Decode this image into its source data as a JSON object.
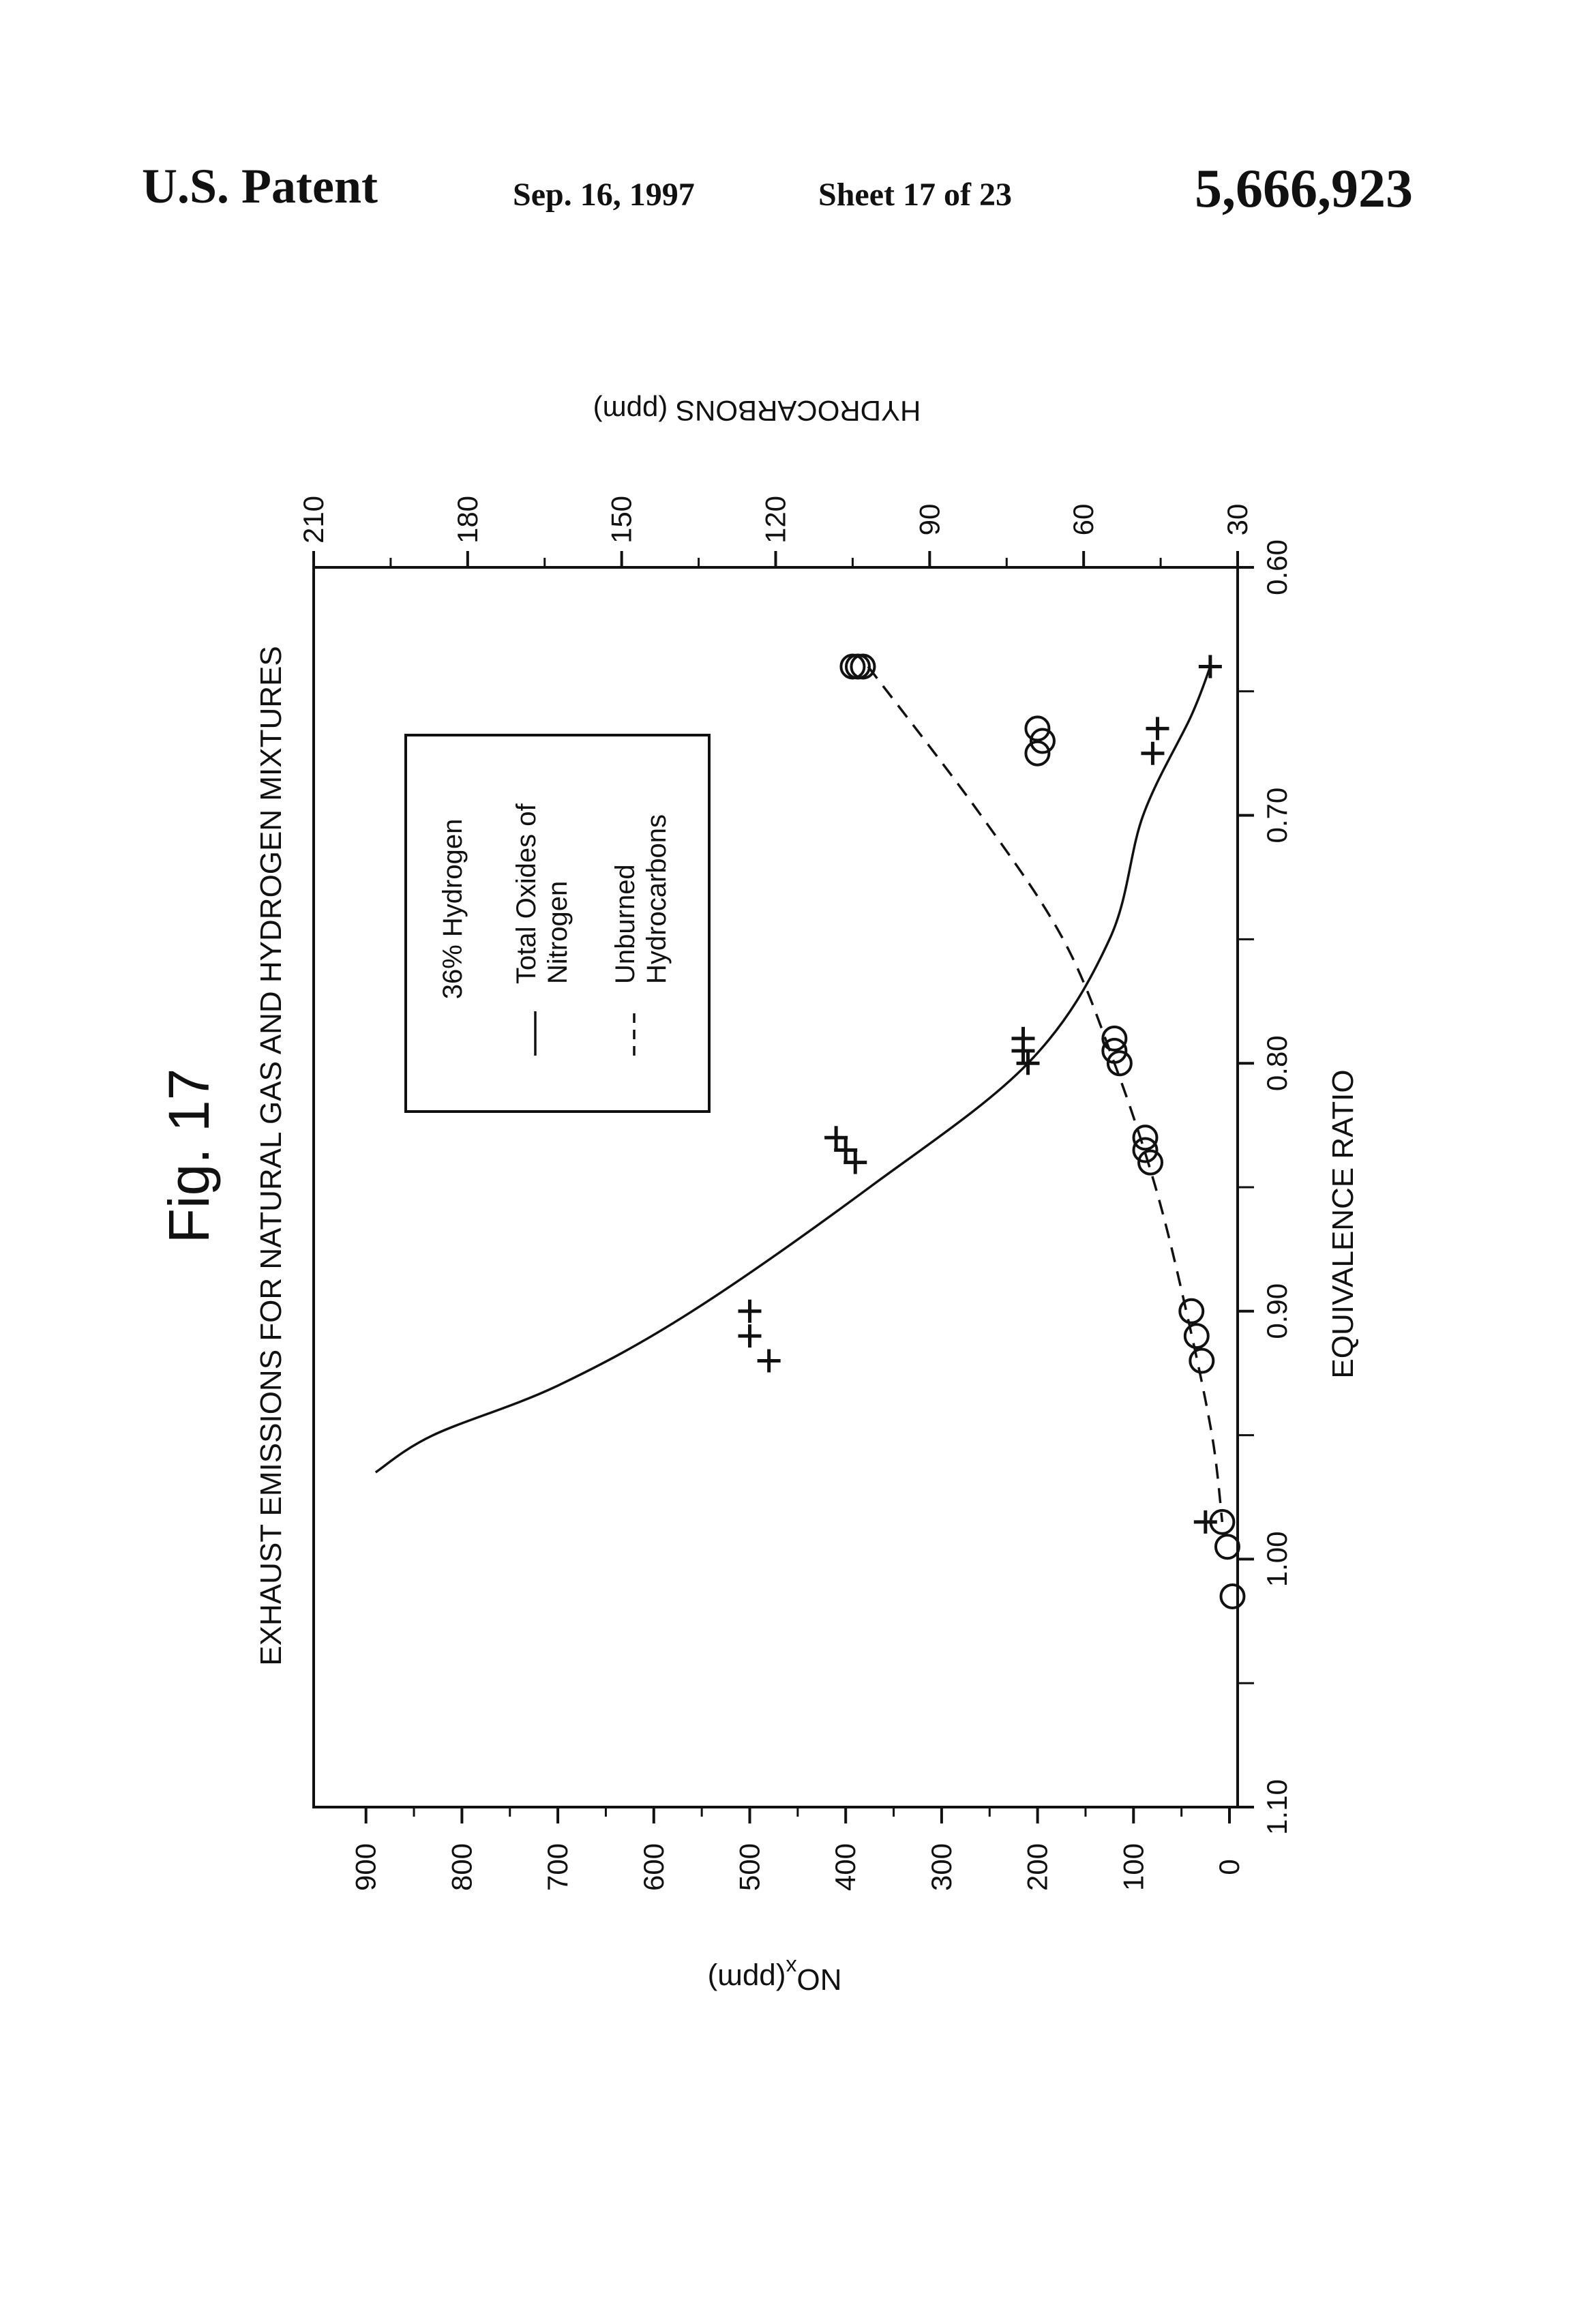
{
  "header": {
    "patent_label": "U.S. Patent",
    "date": "Sep. 16, 1997",
    "sheet": "Sheet 17 of 23",
    "patent_number": "5,666,923"
  },
  "figure_label": "Fig. 17",
  "chart_data": {
    "type": "scatter",
    "title": "EXHAUST EMISSIONS FOR NATURAL GAS AND HYDROGEN MIXTURES",
    "xlabel": "EQUIVALENCE RATIO",
    "ylabel": "NOx (ppm)",
    "ylabel_main": "NO",
    "ylabel_sub": "x",
    "ylabel_unit": "(ppm)",
    "y2label": "HYDROCARBONS (ppm)",
    "x_reversed": true,
    "xlim": [
      0.6,
      1.1
    ],
    "ylim": [
      0,
      950
    ],
    "y2lim": [
      30,
      210
    ],
    "x_ticks": [
      "0.60",
      "0.70",
      "0.80",
      "0.90",
      "1.00",
      "1.10"
    ],
    "y_ticks": [
      "0",
      "100",
      "200",
      "300",
      "400",
      "500",
      "600",
      "700",
      "800",
      "900"
    ],
    "y2_ticks": [
      "30",
      "60",
      "90",
      "120",
      "150",
      "180",
      "210"
    ],
    "legend": {
      "title": "36% Hydrogen",
      "entries": [
        {
          "label_lines": [
            "Total Oxides of",
            "Nitrogen"
          ],
          "style": "solid"
        },
        {
          "label_lines": [
            "Unburned",
            "Hydrocarbons"
          ],
          "style": "dashed"
        }
      ]
    },
    "series": [
      {
        "name": "Total Oxides of Nitrogen",
        "axis": "left",
        "marker": "plus",
        "points": [
          [
            0.64,
            20
          ],
          [
            0.675,
            80
          ],
          [
            0.665,
            75
          ],
          [
            0.79,
            215
          ],
          [
            0.795,
            215
          ],
          [
            0.8,
            210
          ],
          [
            0.83,
            410
          ],
          [
            0.835,
            400
          ],
          [
            0.84,
            390
          ],
          [
            0.9,
            500
          ],
          [
            0.91,
            500
          ],
          [
            0.92,
            480
          ],
          [
            0.985,
            25
          ]
        ]
      },
      {
        "name": "Total Oxides of Nitrogen fit",
        "axis": "left",
        "line": "solid",
        "curve": [
          [
            0.64,
            20
          ],
          [
            0.66,
            40
          ],
          [
            0.7,
            90
          ],
          [
            0.75,
            125
          ],
          [
            0.8,
            210
          ],
          [
            0.85,
            375
          ],
          [
            0.9,
            560
          ],
          [
            0.93,
            700
          ],
          [
            0.95,
            830
          ],
          [
            0.965,
            890
          ]
        ]
      },
      {
        "name": "Unburned Hydrocarbons",
        "axis": "right",
        "marker": "circle",
        "points": [
          [
            0.64,
            103
          ],
          [
            0.64,
            104
          ],
          [
            0.64,
            105
          ],
          [
            0.675,
            69
          ],
          [
            0.665,
            69
          ],
          [
            0.67,
            68
          ],
          [
            0.79,
            54
          ],
          [
            0.795,
            54
          ],
          [
            0.8,
            53
          ],
          [
            0.83,
            48
          ],
          [
            0.835,
            48
          ],
          [
            0.84,
            47
          ],
          [
            0.9,
            39
          ],
          [
            0.91,
            38
          ],
          [
            0.92,
            37
          ],
          [
            0.985,
            33
          ],
          [
            0.995,
            32
          ],
          [
            1.015,
            31
          ]
        ]
      },
      {
        "name": "Unburned Hydrocarbons fit",
        "axis": "right",
        "line": "dashed",
        "curve": [
          [
            0.64,
            102
          ],
          [
            0.7,
            80
          ],
          [
            0.75,
            64
          ],
          [
            0.8,
            54
          ],
          [
            0.85,
            46
          ],
          [
            0.9,
            40
          ],
          [
            0.95,
            35
          ],
          [
            0.985,
            33
          ]
        ]
      }
    ]
  }
}
